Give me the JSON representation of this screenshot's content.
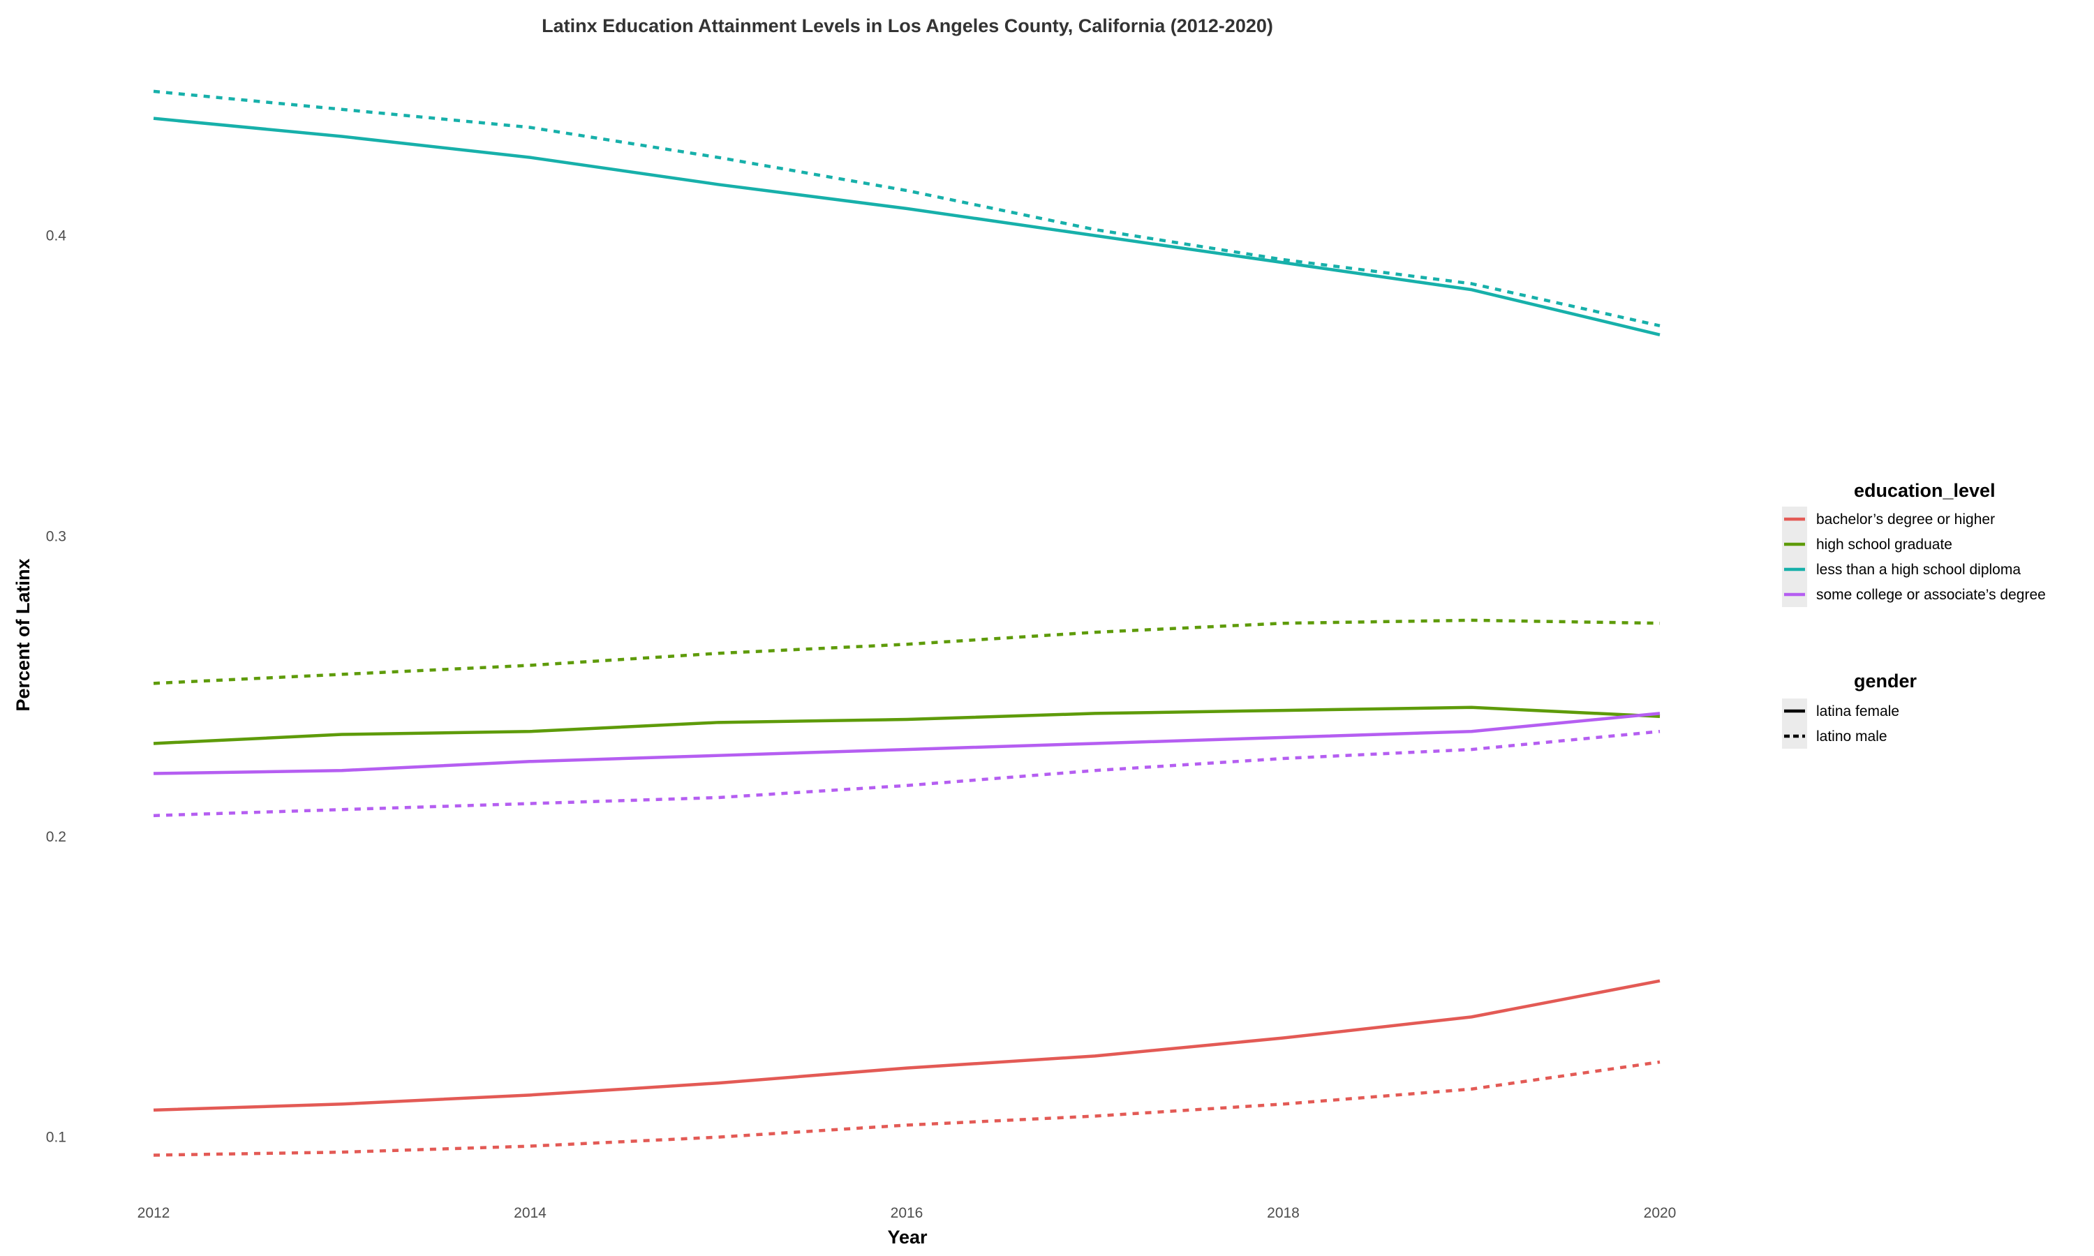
{
  "chart_data": {
    "type": "line",
    "title": "Latinx Education Attainment Levels in Los Angeles County, California (2012-2020)",
    "xlabel": "Year",
    "ylabel": "Percent of Latinx",
    "x": [
      2012,
      2013,
      2014,
      2015,
      2016,
      2017,
      2018,
      2019,
      2020
    ],
    "x_ticks": [
      2012,
      2014,
      2016,
      2018,
      2020
    ],
    "x_tick_labels": [
      "2012",
      "2014",
      "2016",
      "2018",
      "2020"
    ],
    "y_ticks": [
      0.1,
      0.2,
      0.3,
      0.4
    ],
    "y_tick_labels": [
      "0.1",
      "0.2",
      "0.3",
      "0.4"
    ],
    "xlim": [
      2012,
      2020
    ],
    "ylim": [
      0.0825,
      0.4575
    ],
    "grid": false,
    "legend_placement": "right",
    "legends": {
      "color": {
        "title": "education_level",
        "entries": [
          {
            "label": "bachelor’s degree or higher",
            "color": "#e35a55"
          },
          {
            "label": "high school graduate",
            "color": "#5e9b0a"
          },
          {
            "label": "less than a high school diploma",
            "color": "#17b0aa"
          },
          {
            "label": "some college or associate’s degree",
            "color": "#b55ef1"
          }
        ]
      },
      "linetype": {
        "title": "gender",
        "entries": [
          {
            "label": "latina female",
            "dash": "solid"
          },
          {
            "label": "latino male",
            "dash": "dashed"
          }
        ]
      }
    },
    "series": [
      {
        "education_level": "bachelor’s degree or higher",
        "gender": "latina female",
        "color": "#e35a55",
        "dash": "solid",
        "values": [
          0.109,
          0.111,
          0.114,
          0.118,
          0.123,
          0.127,
          0.133,
          0.14,
          0.152
        ]
      },
      {
        "education_level": "bachelor’s degree or higher",
        "gender": "latino male",
        "color": "#e35a55",
        "dash": "dashed",
        "values": [
          0.094,
          0.095,
          0.097,
          0.1,
          0.104,
          0.107,
          0.111,
          0.116,
          0.125
        ]
      },
      {
        "education_level": "high school graduate",
        "gender": "latina female",
        "color": "#5e9b0a",
        "dash": "solid",
        "values": [
          0.231,
          0.234,
          0.235,
          0.238,
          0.239,
          0.241,
          0.242,
          0.243,
          0.24
        ]
      },
      {
        "education_level": "high school graduate",
        "gender": "latino male",
        "color": "#5e9b0a",
        "dash": "dashed",
        "values": [
          0.251,
          0.254,
          0.257,
          0.261,
          0.264,
          0.268,
          0.271,
          0.272,
          0.271
        ]
      },
      {
        "education_level": "less than a high school diploma",
        "gender": "latina female",
        "color": "#17b0aa",
        "dash": "solid",
        "values": [
          0.439,
          0.433,
          0.426,
          0.417,
          0.409,
          0.4,
          0.391,
          0.382,
          0.367
        ]
      },
      {
        "education_level": "less than a high school diploma",
        "gender": "latino male",
        "color": "#17b0aa",
        "dash": "dashed",
        "values": [
          0.448,
          0.442,
          0.436,
          0.426,
          0.415,
          0.402,
          0.392,
          0.384,
          0.37
        ]
      },
      {
        "education_level": "some college or associate’s degree",
        "gender": "latina female",
        "color": "#b55ef1",
        "dash": "solid",
        "values": [
          0.221,
          0.222,
          0.225,
          0.227,
          0.229,
          0.231,
          0.233,
          0.235,
          0.241
        ]
      },
      {
        "education_level": "some college or associate’s degree",
        "gender": "latino male",
        "color": "#b55ef1",
        "dash": "dashed",
        "values": [
          0.207,
          0.209,
          0.211,
          0.213,
          0.217,
          0.222,
          0.226,
          0.229,
          0.235
        ]
      }
    ]
  }
}
